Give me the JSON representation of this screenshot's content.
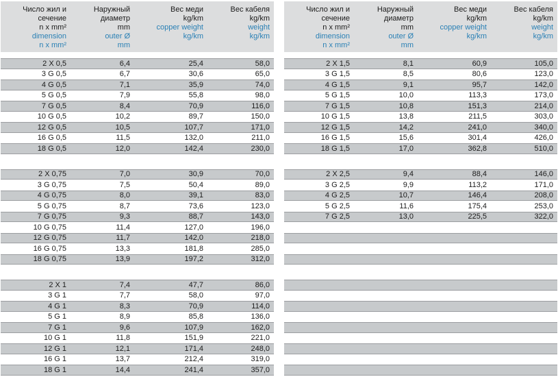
{
  "colors": {
    "accent_blue": "#2a80b5",
    "header_gray": "#dcddde",
    "row_gray": "#c7cacc",
    "row_border": "#9b9da0",
    "text_black": "#1b1b1b"
  },
  "columns": [
    {
      "name": "dimension",
      "black": [
        "Число жил и",
        "сечение",
        "n x mm²"
      ],
      "blue": [
        "dimension",
        "n x mm²"
      ]
    },
    {
      "name": "outer-diameter",
      "black": [
        "Наружный",
        "диаметр",
        "mm"
      ],
      "blue": [
        "outer Ø",
        "mm"
      ]
    },
    {
      "name": "copper-weight",
      "black": [
        "Вес меди",
        "kg/km"
      ],
      "blue": [
        "copper weight",
        "kg/km"
      ]
    },
    {
      "name": "cable-weight",
      "black": [
        "Вес кабеля",
        "kg/km"
      ],
      "blue": [
        "weight",
        "kg/km"
      ]
    }
  ],
  "tables": [
    {
      "name": "left",
      "sections": [
        {
          "rows": [
            [
              "2 X 0,5",
              "6,4",
              "25,4",
              "58,0"
            ],
            [
              "3 G 0,5",
              "6,7",
              "30,6",
              "65,0"
            ],
            [
              "4 G 0,5",
              "7,1",
              "35,9",
              "74,0"
            ],
            [
              "5 G 0,5",
              "7,9",
              "55,8",
              "98,0"
            ],
            [
              "7 G 0,5",
              "8,4",
              "70,9",
              "116,0"
            ],
            [
              "10 G 0,5",
              "10,2",
              "89,7",
              "150,0"
            ],
            [
              "12 G 0,5",
              "10,5",
              "107,7",
              "171,0"
            ],
            [
              "16 G 0,5",
              "11,5",
              "132,0",
              "211,0"
            ],
            [
              "18 G 0,5",
              "12,0",
              "142,4",
              "230,0"
            ]
          ]
        },
        {
          "rows": [
            [
              "2 X 0,75",
              "7,0",
              "30,9",
              "70,0"
            ],
            [
              "3 G 0,75",
              "7,5",
              "50,4",
              "89,0"
            ],
            [
              "4 G 0,75",
              "8,0",
              "39,1",
              "83,0"
            ],
            [
              "5 G 0,75",
              "8,7",
              "73,6",
              "123,0"
            ],
            [
              "7 G 0,75",
              "9,3",
              "88,7",
              "143,0"
            ],
            [
              "10 G 0,75",
              "11,4",
              "127,0",
              "196,0"
            ],
            [
              "12 G 0,75",
              "11,7",
              "142,0",
              "218,0"
            ],
            [
              "16 G 0,75",
              "13,3",
              "181,8",
              "285,0"
            ],
            [
              "18 G 0,75",
              "13,9",
              "197,2",
              "312,0"
            ]
          ]
        },
        {
          "rows": [
            [
              "2 X 1",
              "7,4",
              "47,7",
              "86,0"
            ],
            [
              "3 G 1",
              "7,7",
              "58,0",
              "97,0"
            ],
            [
              "4 G 1",
              "8,3",
              "70,9",
              "114,0"
            ],
            [
              "5 G 1",
              "8,9",
              "85,8",
              "136,0"
            ],
            [
              "7 G 1",
              "9,6",
              "107,9",
              "162,0"
            ],
            [
              "10 G 1",
              "11,8",
              "151,9",
              "221,0"
            ],
            [
              "12 G 1",
              "12,1",
              "171,4",
              "248,0"
            ],
            [
              "16 G 1",
              "13,7",
              "212,4",
              "319,0"
            ],
            [
              "18 G 1",
              "14,4",
              "241,4",
              "357,0"
            ]
          ]
        }
      ]
    },
    {
      "name": "right",
      "sections": [
        {
          "rows": [
            [
              "2 X 1,5",
              "8,1",
              "60,9",
              "105,0"
            ],
            [
              "3 G 1,5",
              "8,5",
              "80,6",
              "123,0"
            ],
            [
              "4 G 1,5",
              "9,1",
              "95,7",
              "142,0"
            ],
            [
              "5 G 1,5",
              "10,0",
              "113,3",
              "173,0"
            ],
            [
              "7 G 1,5",
              "10,8",
              "151,3",
              "214,0"
            ],
            [
              "10 G 1,5",
              "13,8",
              "211,5",
              "303,0"
            ],
            [
              "12 G 1,5",
              "14,2",
              "241,0",
              "340,0"
            ],
            [
              "16 G 1,5",
              "15,6",
              "301,4",
              "426,0"
            ],
            [
              "18 G 1,5",
              "17,0",
              "362,8",
              "510,0"
            ]
          ]
        },
        {
          "rows": [
            [
              "2 X 2,5",
              "9,4",
              "88,4",
              "146,0"
            ],
            [
              "3 G 2,5",
              "9,9",
              "113,2",
              "171,0"
            ],
            [
              "4 G 2,5",
              "10,7",
              "146,4",
              "208,0"
            ],
            [
              "5 G 2,5",
              "11,6",
              "175,4",
              "253,0"
            ],
            [
              "7 G 2,5",
              "13,0",
              "225,5",
              "322,0"
            ],
            [
              "",
              "",
              "",
              ""
            ],
            [
              "",
              "",
              "",
              ""
            ],
            [
              "",
              "",
              "",
              ""
            ],
            [
              "",
              "",
              "",
              ""
            ]
          ]
        },
        {
          "rows": [
            [
              "",
              "",
              "",
              ""
            ],
            [
              "",
              "",
              "",
              ""
            ],
            [
              "",
              "",
              "",
              ""
            ],
            [
              "",
              "",
              "",
              ""
            ],
            [
              "",
              "",
              "",
              ""
            ],
            [
              "",
              "",
              "",
              ""
            ],
            [
              "",
              "",
              "",
              ""
            ],
            [
              "",
              "",
              "",
              ""
            ],
            [
              "",
              "",
              "",
              ""
            ]
          ]
        }
      ]
    }
  ]
}
